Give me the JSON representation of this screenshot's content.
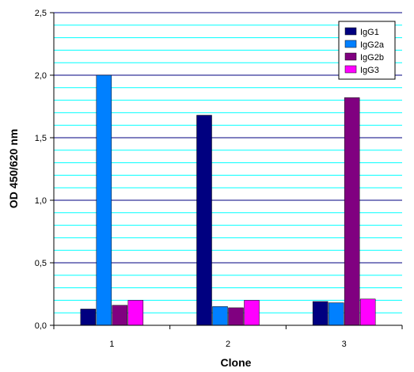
{
  "chart_data": {
    "type": "bar",
    "title": "",
    "xlabel": "Clone",
    "ylabel": "OD 450/620 nm",
    "categories": [
      "1",
      "2",
      "3"
    ],
    "ylim": [
      0,
      2.5
    ],
    "y_major_ticks": [
      "0,0",
      "0,5",
      "1,0",
      "1,5",
      "2,0",
      "2,5"
    ],
    "y_major_values": [
      0,
      0.5,
      1.0,
      1.5,
      2.0,
      2.5
    ],
    "y_minor_step": 0.1,
    "grid": true,
    "legend_position": "top-right",
    "series": [
      {
        "name": "IgG1",
        "color": "#000080",
        "values": [
          0.13,
          1.68,
          0.19
        ]
      },
      {
        "name": "IgG2a",
        "color": "#0080FF",
        "values": [
          2.0,
          0.15,
          0.18
        ]
      },
      {
        "name": "IgG2b",
        "color": "#800080",
        "values": [
          0.16,
          0.14,
          1.82
        ]
      },
      {
        "name": "IgG3",
        "color": "#FF00FF",
        "values": [
          0.2,
          0.2,
          0.21
        ]
      }
    ],
    "colors": {
      "major_grid": "#000080",
      "minor_grid": "#00FFFF",
      "axis": "#000000"
    }
  }
}
